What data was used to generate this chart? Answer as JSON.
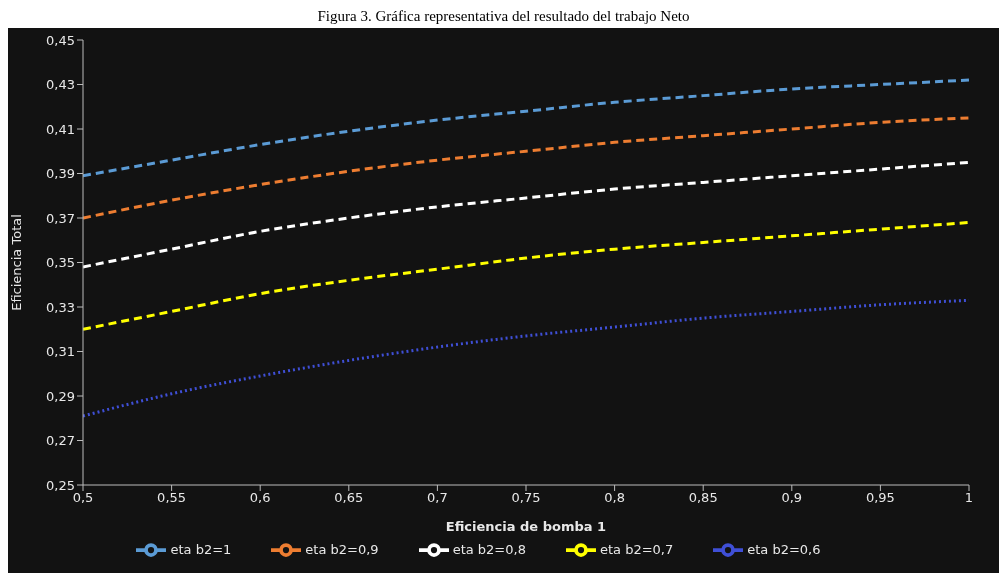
{
  "chart_data": {
    "type": "line",
    "title": "Figura 3. Gráfica representativa del resultado del trabajo Neto",
    "xlabel": "Eficiencia de bomba 1",
    "ylabel": "Eficiencia Total",
    "x": [
      0.5,
      0.55,
      0.6,
      0.65,
      0.7,
      0.75,
      0.8,
      0.85,
      0.9,
      0.95,
      1
    ],
    "series": [
      {
        "name": "eta b2=1",
        "color": "#5b9bd5",
        "line_style": "dashed",
        "values": [
          0.389,
          0.396,
          0.403,
          0.409,
          0.414,
          0.418,
          0.422,
          0.425,
          0.428,
          0.43,
          0.432
        ]
      },
      {
        "name": "eta b2=0,9",
        "color": "#ed7d31",
        "line_style": "dashed",
        "values": [
          0.37,
          0.378,
          0.385,
          0.391,
          0.396,
          0.4,
          0.404,
          0.407,
          0.41,
          0.413,
          0.415
        ]
      },
      {
        "name": "eta b2=0,8",
        "color": "#ffffff",
        "line_style": "dashed",
        "values": [
          0.348,
          0.356,
          0.364,
          0.37,
          0.375,
          0.379,
          0.383,
          0.386,
          0.389,
          0.392,
          0.395
        ]
      },
      {
        "name": "eta b2=0,7",
        "color": "#ffff00",
        "line_style": "dashed",
        "values": [
          0.32,
          0.328,
          0.336,
          0.342,
          0.347,
          0.352,
          0.356,
          0.359,
          0.362,
          0.365,
          0.368
        ]
      },
      {
        "name": "eta b2=0,6",
        "color": "#3f4fd6",
        "line_style": "dotted",
        "values": [
          0.281,
          0.291,
          0.299,
          0.306,
          0.312,
          0.317,
          0.321,
          0.325,
          0.328,
          0.331,
          0.333
        ]
      }
    ],
    "xlim": [
      0.5,
      1
    ],
    "xticks": [
      {
        "value": 0.5,
        "label": "0,5"
      },
      {
        "value": 0.55,
        "label": "0,55"
      },
      {
        "value": 0.6,
        "label": "0,6"
      },
      {
        "value": 0.65,
        "label": "0,65"
      },
      {
        "value": 0.7,
        "label": "0,7"
      },
      {
        "value": 0.75,
        "label": "0,75"
      },
      {
        "value": 0.8,
        "label": "0,8"
      },
      {
        "value": 0.85,
        "label": "0,85"
      },
      {
        "value": 0.9,
        "label": "0,9"
      },
      {
        "value": 0.95,
        "label": "0,95"
      },
      {
        "value": 1,
        "label": "1"
      }
    ],
    "ylim": [
      0.25,
      0.45
    ],
    "yticks": [
      {
        "value": 0.25,
        "label": "0,25"
      },
      {
        "value": 0.27,
        "label": "0,27"
      },
      {
        "value": 0.29,
        "label": "0,29"
      },
      {
        "value": 0.31,
        "label": "0,31"
      },
      {
        "value": 0.33,
        "label": "0,33"
      },
      {
        "value": 0.35,
        "label": "0,35"
      },
      {
        "value": 0.37,
        "label": "0,37"
      },
      {
        "value": 0.39,
        "label": "0,39"
      },
      {
        "value": 0.41,
        "label": "0,41"
      },
      {
        "value": 0.43,
        "label": "0,43"
      },
      {
        "value": 0.45,
        "label": "0,45"
      }
    ],
    "grid": false,
    "legend": "bottom",
    "marker": "none"
  }
}
